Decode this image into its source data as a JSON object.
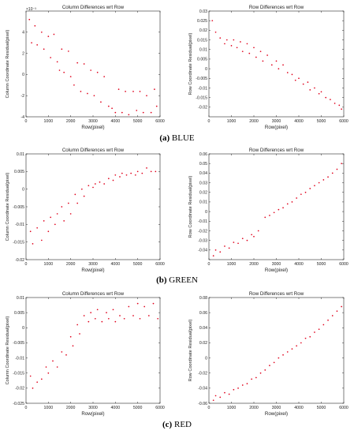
{
  "captions": [
    {
      "letter": "(a)",
      "name": "BLUE"
    },
    {
      "letter": "(b)",
      "name": "GREEN"
    },
    {
      "letter": "(c)",
      "name": "RED"
    }
  ],
  "chart_data": [
    {
      "type": "scatter",
      "title": "Column Differences wrt Row",
      "xlabel": "Row(pixel)",
      "ylabel": "Column Coordinate Residual(pixel)",
      "exponent_label": "×10⁻³",
      "xlim": [
        0,
        6000
      ],
      "ylim": [
        -4,
        6
      ],
      "xticks": [
        0,
        1000,
        2000,
        3000,
        4000,
        5000,
        6000
      ],
      "yticks": [
        -4,
        -2,
        0,
        2,
        4
      ],
      "ytick_labels": [
        "-4",
        "-2",
        "0",
        "2",
        "4"
      ],
      "marker_color": "#e0001b",
      "grid": false,
      "x": [
        150,
        250,
        400,
        500,
        700,
        800,
        1000,
        1100,
        1250,
        1400,
        1500,
        1600,
        1700,
        1900,
        2000,
        2150,
        2300,
        2450,
        2600,
        2750,
        2900,
        3050,
        3200,
        3350,
        3500,
        3700,
        3850,
        4000,
        4150,
        4300,
        4450,
        4600,
        4800,
        4950,
        5100,
        5250,
        5400,
        5600,
        5750,
        5850
      ],
      "y": [
        5.2,
        3.0,
        4.6,
        2.8,
        4.0,
        2.4,
        3.6,
        1.6,
        3.8,
        1.2,
        0.4,
        2.4,
        0.2,
        2.2,
        -0.2,
        -1.0,
        1.1,
        -1.6,
        1.0,
        -1.8,
        0.4,
        -2.0,
        0.2,
        -2.6,
        -0.2,
        -3.0,
        -3.2,
        -3.6,
        -1.4,
        -3.6,
        -1.6,
        -3.8,
        -1.6,
        -3.4,
        -1.6,
        -3.6,
        -2.0,
        -3.6,
        -1.4,
        -3.0
      ]
    },
    {
      "type": "scatter",
      "title": "Row Differences wrt Row",
      "xlabel": "Row(pixel)",
      "ylabel": "Row Coordinate Residual(pixel)",
      "xlim": [
        0,
        6000
      ],
      "ylim": [
        -0.025,
        0.03
      ],
      "xticks": [
        0,
        1000,
        2000,
        3000,
        4000,
        5000,
        6000
      ],
      "yticks": [
        -0.02,
        -0.015,
        -0.01,
        -0.005,
        0,
        0.005,
        0.01,
        0.015,
        0.02,
        0.025,
        0.03
      ],
      "ytick_labels": [
        "-0.02",
        "-0.015",
        "-0.01",
        "-0.005",
        "0",
        "0.005",
        "0.01",
        "0.015",
        "0.02",
        "0.025",
        "0.03"
      ],
      "marker_color": "#e0001b",
      "grid": false,
      "x": [
        150,
        300,
        500,
        700,
        800,
        1000,
        1100,
        1250,
        1400,
        1500,
        1700,
        1800,
        2000,
        2100,
        2300,
        2400,
        2600,
        2800,
        3000,
        3100,
        3300,
        3500,
        3700,
        3850,
        4000,
        4200,
        4400,
        4500,
        4700,
        4900,
        5000,
        5200,
        5400,
        5600,
        5800,
        5900
      ],
      "y": [
        0.025,
        0.019,
        0.016,
        0.013,
        0.015,
        0.012,
        0.015,
        0.011,
        0.014,
        0.009,
        0.013,
        0.008,
        0.011,
        0.006,
        0.009,
        0.004,
        0.007,
        0.002,
        0.004,
        0.0,
        0.002,
        -0.002,
        -0.003,
        -0.006,
        -0.005,
        -0.008,
        -0.007,
        -0.011,
        -0.01,
        -0.013,
        -0.012,
        -0.015,
        -0.016,
        -0.018,
        -0.019,
        -0.021
      ]
    },
    {
      "type": "scatter",
      "title": "Column Differences wrt Row",
      "xlabel": "Row(pixel)",
      "ylabel": "Column Coordinate Residual(pixel)",
      "xlim": [
        0,
        6000
      ],
      "ylim": [
        -0.02,
        0.01
      ],
      "xticks": [
        0,
        1000,
        2000,
        3000,
        4000,
        5000,
        6000
      ],
      "yticks": [
        -0.02,
        -0.015,
        -0.01,
        -0.005,
        0,
        0.005,
        0.01
      ],
      "ytick_labels": [
        "-0.02",
        "-0.015",
        "-0.01",
        "-0.005",
        "0",
        "0.005",
        "0.01"
      ],
      "marker_color": "#e0001b",
      "grid": false,
      "x": [
        200,
        300,
        500,
        700,
        800,
        1000,
        1100,
        1300,
        1400,
        1600,
        1700,
        1900,
        2000,
        2200,
        2300,
        2500,
        2600,
        2800,
        3000,
        3100,
        3300,
        3500,
        3700,
        3900,
        4000,
        4200,
        4300,
        4500,
        4700,
        4900,
        5000,
        5200,
        5400,
        5600,
        5800
      ],
      "y": [
        -0.012,
        -0.0155,
        -0.011,
        -0.0145,
        -0.009,
        -0.012,
        -0.008,
        -0.01,
        -0.007,
        -0.005,
        -0.009,
        -0.004,
        -0.007,
        -0.0015,
        -0.004,
        0.0,
        -0.002,
        0.001,
        0.0005,
        0.0015,
        0.002,
        0.0015,
        0.003,
        0.0025,
        0.004,
        0.0035,
        0.0045,
        0.004,
        0.0045,
        0.004,
        0.005,
        0.0045,
        0.006,
        0.005,
        0.005
      ]
    },
    {
      "type": "scatter",
      "title": "Row Differences wrt Row",
      "xlabel": "Row(pixel)",
      "ylabel": "Row Coordinate Residual(pixel)",
      "xlim": [
        0,
        6000
      ],
      "ylim": [
        -0.05,
        0.06
      ],
      "xticks": [
        0,
        1000,
        2000,
        3000,
        4000,
        5000,
        6000
      ],
      "yticks": [
        -0.05,
        -0.04,
        -0.03,
        -0.02,
        -0.01,
        0,
        0.01,
        0.02,
        0.03,
        0.04,
        0.05,
        0.06
      ],
      "ytick_labels": [
        "",
        "-0.04",
        "-0.03",
        "-0.02",
        "-0.01",
        "0",
        "0.01",
        "0.02",
        "0.03",
        "0.04",
        "0.05",
        "0.06"
      ],
      "marker_color": "#e0001b",
      "grid": false,
      "x": [
        200,
        300,
        500,
        700,
        900,
        1100,
        1300,
        1500,
        1700,
        1900,
        2000,
        2200,
        2500,
        2700,
        2900,
        3100,
        3300,
        3500,
        3700,
        3900,
        4100,
        4300,
        4500,
        4700,
        4900,
        5100,
        5300,
        5500,
        5700,
        5900
      ],
      "y": [
        -0.046,
        -0.04,
        -0.042,
        -0.036,
        -0.038,
        -0.032,
        -0.033,
        -0.028,
        -0.03,
        -0.024,
        -0.026,
        -0.02,
        -0.006,
        -0.004,
        -0.001,
        0.002,
        0.004,
        0.008,
        0.01,
        0.014,
        0.018,
        0.02,
        0.024,
        0.027,
        0.03,
        0.033,
        0.036,
        0.04,
        0.044,
        0.05
      ]
    },
    {
      "type": "scatter",
      "title": "Column Differences wrt Row",
      "xlabel": "Row(pixel)",
      "ylabel": "Column Coordinate Residual(pixel)",
      "xlim": [
        0,
        6000
      ],
      "ylim": [
        -0.025,
        0.01
      ],
      "xticks": [
        0,
        1000,
        2000,
        3000,
        4000,
        5000,
        6000
      ],
      "yticks": [
        -0.025,
        -0.02,
        -0.015,
        -0.01,
        -0.005,
        0,
        0.005,
        0.01
      ],
      "ytick_labels": [
        "-0.025",
        "-0.02",
        "-0.015",
        "-0.01",
        "-0.005",
        "0",
        "0.005",
        "0.01"
      ],
      "marker_color": "#e0001b",
      "grid": false,
      "x": [
        200,
        300,
        500,
        700,
        900,
        1000,
        1200,
        1400,
        1600,
        1800,
        2000,
        2100,
        2300,
        2400,
        2600,
        2800,
        2900,
        3100,
        3200,
        3400,
        3600,
        3700,
        3900,
        4000,
        4200,
        4400,
        4600,
        4800,
        5000,
        5100,
        5300,
        5500,
        5700,
        5900
      ],
      "y": [
        -0.016,
        -0.02,
        -0.018,
        -0.017,
        -0.013,
        -0.015,
        -0.011,
        -0.013,
        -0.008,
        -0.009,
        -0.003,
        -0.006,
        0.001,
        -0.002,
        0.004,
        0.002,
        0.005,
        0.003,
        0.006,
        0.002,
        0.005,
        0.003,
        0.006,
        0.002,
        0.004,
        0.003,
        0.007,
        0.004,
        0.008,
        0.003,
        0.007,
        0.004,
        0.008,
        0.003
      ]
    },
    {
      "type": "scatter",
      "title": "Row Differences wrt Row",
      "xlabel": "Row(pixel)",
      "ylabel": "Row Coordinate Residual(pixel)",
      "xlim": [
        0,
        6000
      ],
      "ylim": [
        -0.06,
        0.08
      ],
      "xticks": [
        0,
        1000,
        2000,
        3000,
        4000,
        5000,
        6000
      ],
      "yticks": [
        -0.06,
        -0.04,
        -0.02,
        0,
        0.02,
        0.04,
        0.06,
        0.08
      ],
      "ytick_labels": [
        "-0.06",
        "-0.04",
        "-0.02",
        "0",
        "0.02",
        "0.04",
        "0.06",
        "0.08"
      ],
      "marker_color": "#e0001b",
      "grid": false,
      "x": [
        200,
        300,
        500,
        700,
        900,
        1100,
        1300,
        1500,
        1700,
        1900,
        2100,
        2300,
        2500,
        2700,
        2900,
        3100,
        3300,
        3500,
        3700,
        3900,
        4100,
        4300,
        4500,
        4700,
        4900,
        5100,
        5300,
        5500,
        5700,
        5900
      ],
      "y": [
        -0.056,
        -0.05,
        -0.052,
        -0.046,
        -0.048,
        -0.042,
        -0.04,
        -0.036,
        -0.034,
        -0.028,
        -0.026,
        -0.02,
        -0.016,
        -0.01,
        -0.006,
        0.0,
        0.004,
        0.008,
        0.012,
        0.016,
        0.02,
        0.026,
        0.028,
        0.034,
        0.038,
        0.044,
        0.05,
        0.056,
        0.062,
        0.068
      ]
    }
  ]
}
